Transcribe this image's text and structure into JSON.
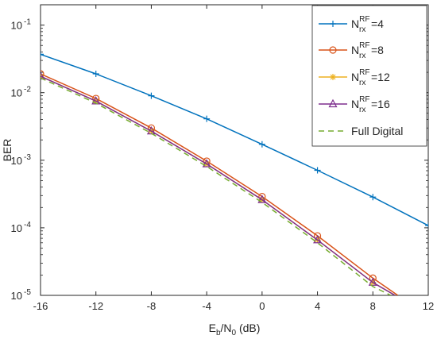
{
  "chart_data": {
    "type": "line",
    "title": "",
    "xlabel": {
      "main": "E",
      "sub1": "b",
      "mid": "/N",
      "sub2": "0",
      "tail": " (dB)"
    },
    "ylabel": "BER",
    "xlim": [
      -16,
      12
    ],
    "ylim": [
      1e-05,
      0.2
    ],
    "yscale": "log",
    "grid": false,
    "legend_position": "top-right",
    "x_ticks": [
      -16,
      -12,
      -8,
      -4,
      0,
      4,
      8,
      12
    ],
    "x_tick_labels": [
      "-16",
      "-12",
      "-8",
      "-4",
      "0",
      "4",
      "8",
      "12"
    ],
    "y_ticks": [
      {
        "value": 1e-05,
        "base": "10",
        "exp": "-5"
      },
      {
        "value": 0.0001,
        "base": "10",
        "exp": "-4"
      },
      {
        "value": 0.001,
        "base": "10",
        "exp": "-3"
      },
      {
        "value": 0.01,
        "base": "10",
        "exp": "-2"
      },
      {
        "value": 0.1,
        "base": "10",
        "exp": "-1"
      }
    ],
    "series": [
      {
        "name": {
          "main": "N",
          "sup": "RF",
          "sub": "rx",
          "tail": "=4"
        },
        "color": "#0072BD",
        "marker": "plus",
        "dash": "",
        "x": [
          -16,
          -12,
          -8,
          -4,
          0,
          4,
          8,
          12
        ],
        "y": [
          0.037,
          0.019,
          0.009,
          0.0041,
          0.00172,
          0.00071,
          0.000285,
          0.000108
        ]
      },
      {
        "name": {
          "main": "N",
          "sup": "RF",
          "sub": "rx",
          "tail": "=8"
        },
        "color": "#D95319",
        "marker": "circle",
        "dash": "",
        "x": [
          -16,
          -12,
          -8,
          -4,
          0,
          4,
          8,
          9.8
        ],
        "y": [
          0.019,
          0.0082,
          0.003,
          0.00097,
          0.00029,
          7.6e-05,
          1.8e-05,
          1e-05
        ]
      },
      {
        "name": {
          "main": "N",
          "sup": "RF",
          "sub": "rx",
          "tail": "=12"
        },
        "color": "#EDB120",
        "marker": "star",
        "dash": "",
        "x": [
          -16,
          -12,
          -8,
          -4,
          0,
          4,
          8,
          9.6
        ],
        "y": [
          0.0175,
          0.0075,
          0.0027,
          0.00088,
          0.00026,
          6.6e-05,
          1.55e-05,
          1e-05
        ]
      },
      {
        "name": {
          "main": "N",
          "sup": "RF",
          "sub": "rx",
          "tail": "=16"
        },
        "color": "#7E2F8E",
        "marker": "triangle",
        "dash": "",
        "x": [
          -16,
          -12,
          -8,
          -4,
          0,
          4,
          8,
          9.6
        ],
        "y": [
          0.0175,
          0.0075,
          0.0027,
          0.00088,
          0.00026,
          6.6e-05,
          1.55e-05,
          1e-05
        ]
      },
      {
        "name": {
          "main": "Full Digital",
          "sup": "",
          "sub": "",
          "tail": ""
        },
        "color": "#77AC30",
        "marker": "none",
        "dash": "7,5",
        "x": [
          -16,
          -12,
          -8,
          -4,
          0,
          4,
          8,
          9.3
        ],
        "y": [
          0.0165,
          0.007,
          0.0025,
          0.00081,
          0.000238,
          6e-05,
          1.35e-05,
          1e-05
        ]
      }
    ]
  }
}
